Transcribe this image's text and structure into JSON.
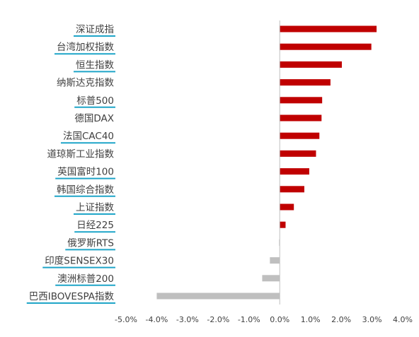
{
  "chart_data": {
    "type": "bar",
    "orientation": "horizontal",
    "categories": [
      "深证成指",
      "台湾加权指数",
      "恒生指数",
      "纳斯达克指数",
      "标普500",
      "德国DAX",
      "法国CAC40",
      "道琼斯工业指数",
      "英国富时100",
      "韩国综合指数",
      "上证指数",
      "日经225",
      "俄罗斯RTS",
      "印度SENSEX30",
      "澳洲标普200",
      "巴西IBOVESPA指数"
    ],
    "values": [
      3.15,
      2.98,
      2.02,
      1.65,
      1.38,
      1.36,
      1.29,
      1.18,
      0.96,
      0.8,
      0.46,
      0.19,
      -0.02,
      -0.32,
      -0.57,
      -4.0
    ],
    "underlined": [
      true,
      true,
      true,
      false,
      true,
      false,
      true,
      false,
      true,
      true,
      true,
      true,
      true,
      true,
      true,
      true
    ],
    "xlim": [
      -5.0,
      4.0
    ],
    "x_ticks": [
      "-5.0%",
      "-4.0%",
      "-3.0%",
      "-2.0%",
      "-1.0%",
      "0.0%",
      "1.0%",
      "2.0%",
      "3.0%",
      "4.0%"
    ],
    "colors": {
      "positive": "#c00000",
      "negative": "#bfbfbf",
      "underline": "#1fa5c8",
      "axis": "#bfbfbf"
    },
    "grid": false,
    "legend": "none",
    "title": "",
    "xlabel": "",
    "ylabel": ""
  }
}
